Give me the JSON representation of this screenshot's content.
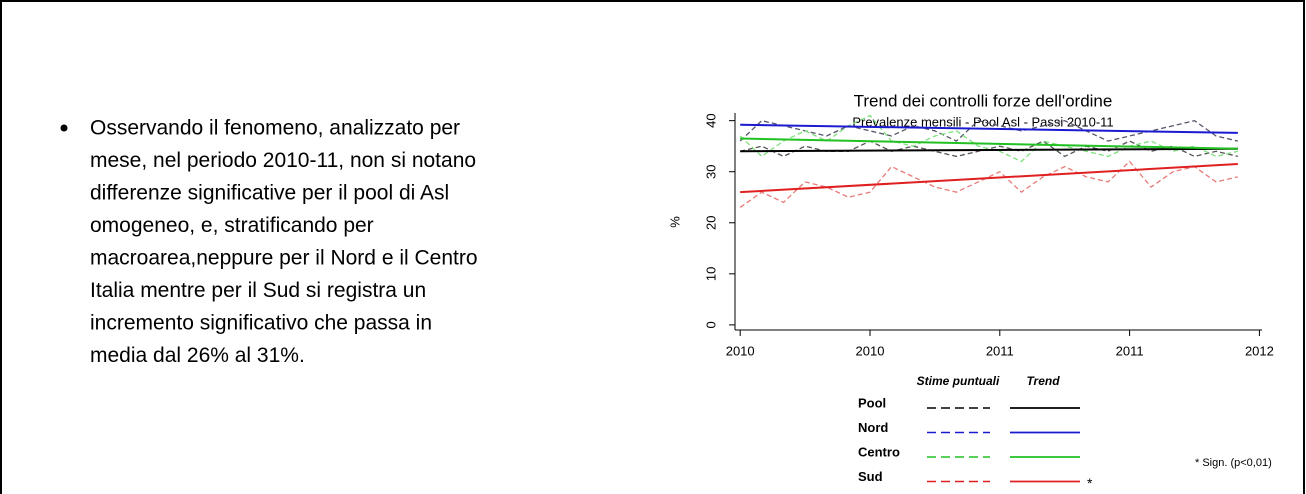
{
  "bullet": {
    "lines": [
      "Osservando il fenomeno, analizzato per",
      "mese, nel periodo 2010-11, non si notano",
      "differenze significative per il pool di Asl",
      "omogeneo, e, stratificando per",
      "macroarea,neppure per il Nord e il Centro",
      "Italia mentre per il Sud si registra un",
      "incremento significativo che passa in",
      "media dal 26% al 31%."
    ]
  },
  "chart_data": {
    "type": "line",
    "title": "Trend dei controlli forze dell'ordine",
    "subtitle": "Prevalenze mensili - Pool Asl - Passi 2010-11",
    "y_label": "%",
    "x": [
      2010,
      2010.083,
      2010.167,
      2010.25,
      2010.333,
      2010.417,
      2010.5,
      2010.583,
      2010.667,
      2010.75,
      2010.833,
      2010.917,
      2011,
      2011.083,
      2011.167,
      2011.25,
      2011.333,
      2011.417,
      2011.5,
      2011.583,
      2011.667,
      2011.75,
      2011.833,
      2011.917
    ],
    "xlim": [
      2009.98,
      2012.01
    ],
    "xticks": [
      {
        "value": 2010,
        "label": "2010"
      },
      {
        "value": 2010.5,
        "label": "2010"
      },
      {
        "value": 2011,
        "label": "2011"
      },
      {
        "value": 2011.5,
        "label": "2011"
      },
      {
        "value": 2012,
        "label": "2012"
      }
    ],
    "ylim": [
      -1,
      41.5
    ],
    "yticks": [
      0,
      10,
      20,
      30,
      40
    ],
    "legend_columns": [
      "Stime puntuali",
      "Trend"
    ],
    "series": [
      {
        "name": "Pool",
        "label_color": "#000000",
        "estimate": {
          "color": "#555555",
          "values": [
            34,
            35,
            33,
            35,
            34,
            34,
            36,
            34,
            35,
            34,
            33,
            34,
            35,
            34,
            36,
            33,
            35,
            34,
            36,
            34,
            35,
            33,
            34,
            33
          ]
        },
        "trend": {
          "color": "#000000",
          "x": [
            2010,
            2011.917
          ],
          "values": [
            34,
            34.5
          ]
        }
      },
      {
        "name": "Nord",
        "label_color": "#1a1ad0",
        "estimate": {
          "color": "#55556a",
          "values": [
            36,
            40,
            39,
            38,
            37,
            39,
            38,
            37,
            39,
            38,
            36,
            40,
            39,
            38,
            39,
            40,
            38,
            36,
            37,
            38,
            39,
            40,
            37,
            36
          ]
        },
        "trend": {
          "color": "#1a1ad0",
          "x": [
            2010,
            2011.917
          ],
          "values": [
            39.2,
            37.6
          ]
        }
      },
      {
        "name": "Centro",
        "label_color": "#22b04a",
        "estimate": {
          "color": "#7de07d",
          "values": [
            37,
            33,
            36,
            38,
            36,
            39,
            41,
            36,
            35,
            37,
            38,
            35,
            34,
            32,
            36,
            35,
            34,
            33,
            35,
            36,
            34,
            35,
            33,
            34
          ]
        },
        "trend": {
          "color": "#22c022",
          "x": [
            2010,
            2011.917
          ],
          "values": [
            36.5,
            34.5
          ]
        }
      },
      {
        "name": "Sud",
        "label_color": "#e02020",
        "estimate": {
          "color": "#e87a7a",
          "values": [
            23,
            26,
            24,
            28,
            27,
            25,
            26,
            31,
            29,
            27,
            26,
            28,
            30,
            26,
            29,
            31,
            29,
            28,
            32,
            27,
            30,
            31,
            28,
            29
          ]
        },
        "trend": {
          "color": "#e02020",
          "x": [
            2010,
            2011.917
          ],
          "values": [
            26,
            31.5
          ]
        },
        "marker": "*"
      }
    ],
    "note": "* Sign. (p<0,01)"
  }
}
